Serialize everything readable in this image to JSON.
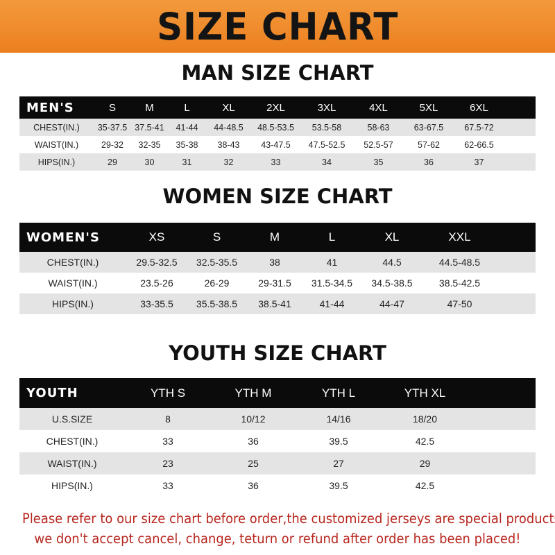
{
  "banner": {
    "title": "SIZE CHART",
    "color": "#ee8526"
  },
  "men": {
    "title": "MAN SIZE CHART",
    "header": [
      "MEN'S",
      "S",
      "M",
      "L",
      "XL",
      "2XL",
      "3XL",
      "4XL",
      "5XL",
      "6XL"
    ],
    "rows": [
      [
        "CHEST(IN.)",
        "35-37.5",
        "37.5-41",
        "41-44",
        "44-48.5",
        "48.5-53.5",
        "53.5-58",
        "58-63",
        "63-67.5",
        "67.5-72"
      ],
      [
        "WAIST(IN.)",
        "29-32",
        "32-35",
        "35-38",
        "38-43",
        "43-47.5",
        "47.5-52.5",
        "52.5-57",
        "57-62",
        "62-66.5"
      ],
      [
        "HIPS(IN.)",
        "29",
        "30",
        "31",
        "32",
        "33",
        "34",
        "35",
        "36",
        "37"
      ]
    ]
  },
  "women": {
    "title": "WOMEN SIZE CHART",
    "header": [
      "WOMEN'S",
      "XS",
      "S",
      "M",
      "L",
      "XL",
      "XXL"
    ],
    "rows": [
      [
        "CHEST(IN.)",
        "29.5-32.5",
        "32.5-35.5",
        "38",
        "41",
        "44.5",
        "44.5-48.5"
      ],
      [
        "WAIST(IN.)",
        "23.5-26",
        "26-29",
        "29-31.5",
        "31.5-34.5",
        "34.5-38.5",
        "38.5-42.5"
      ],
      [
        "HIPS(IN.)",
        "33-35.5",
        "35.5-38.5",
        "38.5-41",
        "41-44",
        "44-47",
        "47-50"
      ]
    ]
  },
  "youth": {
    "title": "YOUTH SIZE CHART",
    "header": [
      "YOUTH",
      "YTH S",
      "YTH M",
      "YTH L",
      "YTH XL"
    ],
    "rows": [
      [
        "U.S.SIZE",
        "8",
        "10/12",
        "14/16",
        "18/20"
      ],
      [
        "CHEST(IN.)",
        "33",
        "36",
        "39.5",
        "42.5"
      ],
      [
        "WAIST(IN.)",
        "23",
        "25",
        "27",
        "29"
      ],
      [
        "HIPS(IN.)",
        "33",
        "36",
        "39.5",
        "42.5"
      ]
    ]
  },
  "footer": {
    "line1": "Please refer to our size chart before order,the customized jerseys are special products,",
    "line2": "we don't accept cancel, change, teturn or refund after order has been placed!"
  }
}
